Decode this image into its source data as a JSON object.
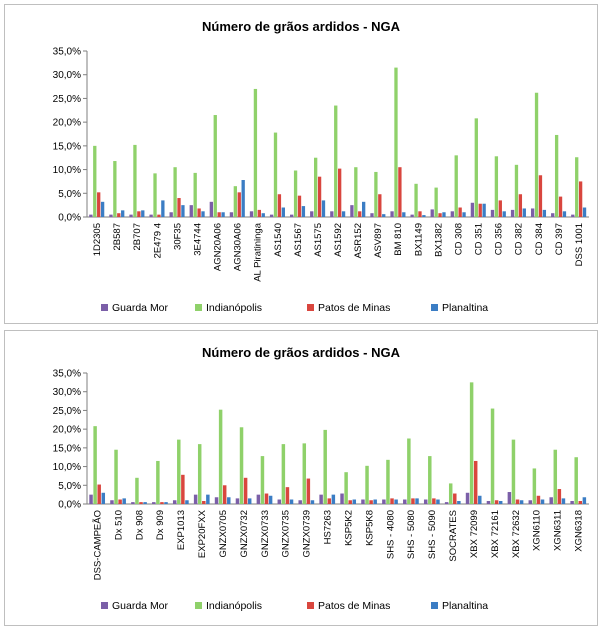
{
  "chart_data": [
    {
      "type": "bar",
      "title": "Número de grãos ardidos - NGA",
      "xlabel": "",
      "ylabel": "",
      "ylim": [
        0,
        35
      ],
      "yticks": [
        "0,0%",
        "5,0%",
        "10,0%",
        "15,0%",
        "20,0%",
        "25,0%",
        "30,0%",
        "35,0%"
      ],
      "grid": false,
      "legend_position": "bottom",
      "categories": [
        "1D2305",
        "2B587",
        "2B707",
        "2E479 4",
        "30F35",
        "3E4744",
        "AGN20A06",
        "AGN30A06",
        "AL Piratininga",
        "AS1540",
        "AS1567",
        "AS1575",
        "AS1592",
        "ASR152",
        "ASV897",
        "BM 810",
        "BX1149",
        "BX1382",
        "CD 308",
        "CD 351",
        "CD 356",
        "CD 382",
        "CD 384",
        "CD 397",
        "DSS 1001"
      ],
      "series": [
        {
          "name": "Guarda Mor",
          "color": "#7b5fa8",
          "values": [
            0.5,
            0.5,
            0.5,
            0.5,
            1.0,
            2.5,
            3.2,
            1.0,
            1.2,
            0.5,
            0.5,
            1.2,
            1.2,
            2.5,
            0.8,
            1.2,
            0.5,
            1.6,
            1.2,
            3.0,
            1.5,
            1.5,
            1.8,
            0.8,
            0.5
          ]
        },
        {
          "name": "Indianópolis",
          "color": "#8fd16a",
          "values": [
            15.0,
            11.8,
            15.2,
            9.2,
            10.5,
            9.3,
            21.5,
            6.5,
            27.0,
            17.8,
            9.8,
            12.5,
            23.5,
            10.5,
            9.5,
            31.5,
            7.0,
            6.2,
            13.0,
            20.8,
            12.8,
            11.0,
            26.2,
            17.3,
            12.6
          ]
        },
        {
          "name": "Patos de Minas",
          "color": "#d9463e",
          "values": [
            5.2,
            0.8,
            1.2,
            0.5,
            4.0,
            1.8,
            1.0,
            5.2,
            1.5,
            4.8,
            4.5,
            8.5,
            10.2,
            1.2,
            4.8,
            10.5,
            1.2,
            0.8,
            2.0,
            2.8,
            3.5,
            4.8,
            8.8,
            4.3,
            7.5
          ]
        },
        {
          "name": "Planaltina",
          "color": "#3b7dc4",
          "values": [
            3.2,
            1.4,
            1.4,
            3.5,
            2.5,
            1.2,
            1.0,
            7.8,
            0.8,
            2.0,
            2.3,
            3.5,
            1.2,
            3.2,
            0.6,
            1.0,
            0.4,
            1.0,
            1.0,
            2.8,
            1.2,
            1.8,
            1.5,
            1.2,
            2.0
          ]
        }
      ]
    },
    {
      "type": "bar",
      "title": "Número de grãos ardidos - NGA",
      "xlabel": "",
      "ylabel": "",
      "ylim": [
        0,
        35
      ],
      "yticks": [
        "0,0%",
        "5,0%",
        "10,0%",
        "15,0%",
        "20,0%",
        "25,0%",
        "30,0%",
        "35,0%"
      ],
      "grid": false,
      "legend_position": "bottom",
      "categories": [
        "DSS-CAMPEÃO",
        "Dx 510",
        "Dx 908",
        "Dx 909",
        "EXP1013",
        "EXP20FXX",
        "GNZX0705",
        "GNZX0732",
        "GNZX0733",
        "GNZX0735",
        "GNZX0739",
        "HS7263",
        "KSP5K2",
        "KSP5K8",
        "SHS - 4080",
        "SHS - 5080",
        "SHS - 5090",
        "SOCRATES",
        "XBX 72099",
        "XBX 72161",
        "XBX 72632",
        "XGN6110",
        "XGN6311",
        "XGN6318"
      ],
      "series": [
        {
          "name": "Guarda Mor",
          "color": "#7b5fa8",
          "values": [
            2.5,
            1.0,
            0.5,
            0.5,
            1.0,
            2.5,
            1.8,
            1.5,
            2.5,
            1.2,
            1.0,
            2.5,
            2.8,
            1.2,
            1.2,
            1.2,
            1.2,
            0.5,
            3.0,
            0.8,
            3.2,
            1.0,
            1.8,
            0.8
          ]
        },
        {
          "name": "Indianópolis",
          "color": "#8fd16a",
          "values": [
            20.8,
            14.5,
            7.0,
            11.5,
            17.2,
            16.0,
            25.2,
            20.5,
            12.8,
            16.0,
            16.2,
            19.8,
            8.5,
            10.2,
            11.8,
            17.5,
            12.8,
            5.5,
            32.5,
            25.5,
            17.2,
            9.5,
            14.5,
            12.5
          ]
        },
        {
          "name": "Patos de Minas",
          "color": "#d9463e",
          "values": [
            5.2,
            1.2,
            0.5,
            0.5,
            7.8,
            0.8,
            5.0,
            7.0,
            2.8,
            4.5,
            6.8,
            1.5,
            1.0,
            1.0,
            1.5,
            1.5,
            1.5,
            2.8,
            11.5,
            1.0,
            1.2,
            2.2,
            4.0,
            0.8
          ]
        },
        {
          "name": "Planaltina",
          "color": "#3b7dc4",
          "values": [
            3.0,
            1.5,
            0.5,
            0.5,
            1.0,
            2.5,
            1.8,
            1.5,
            2.2,
            1.2,
            1.0,
            2.5,
            1.2,
            1.2,
            1.2,
            1.5,
            1.2,
            0.8,
            2.2,
            0.8,
            1.0,
            1.2,
            1.5,
            1.8
          ]
        }
      ]
    }
  ]
}
